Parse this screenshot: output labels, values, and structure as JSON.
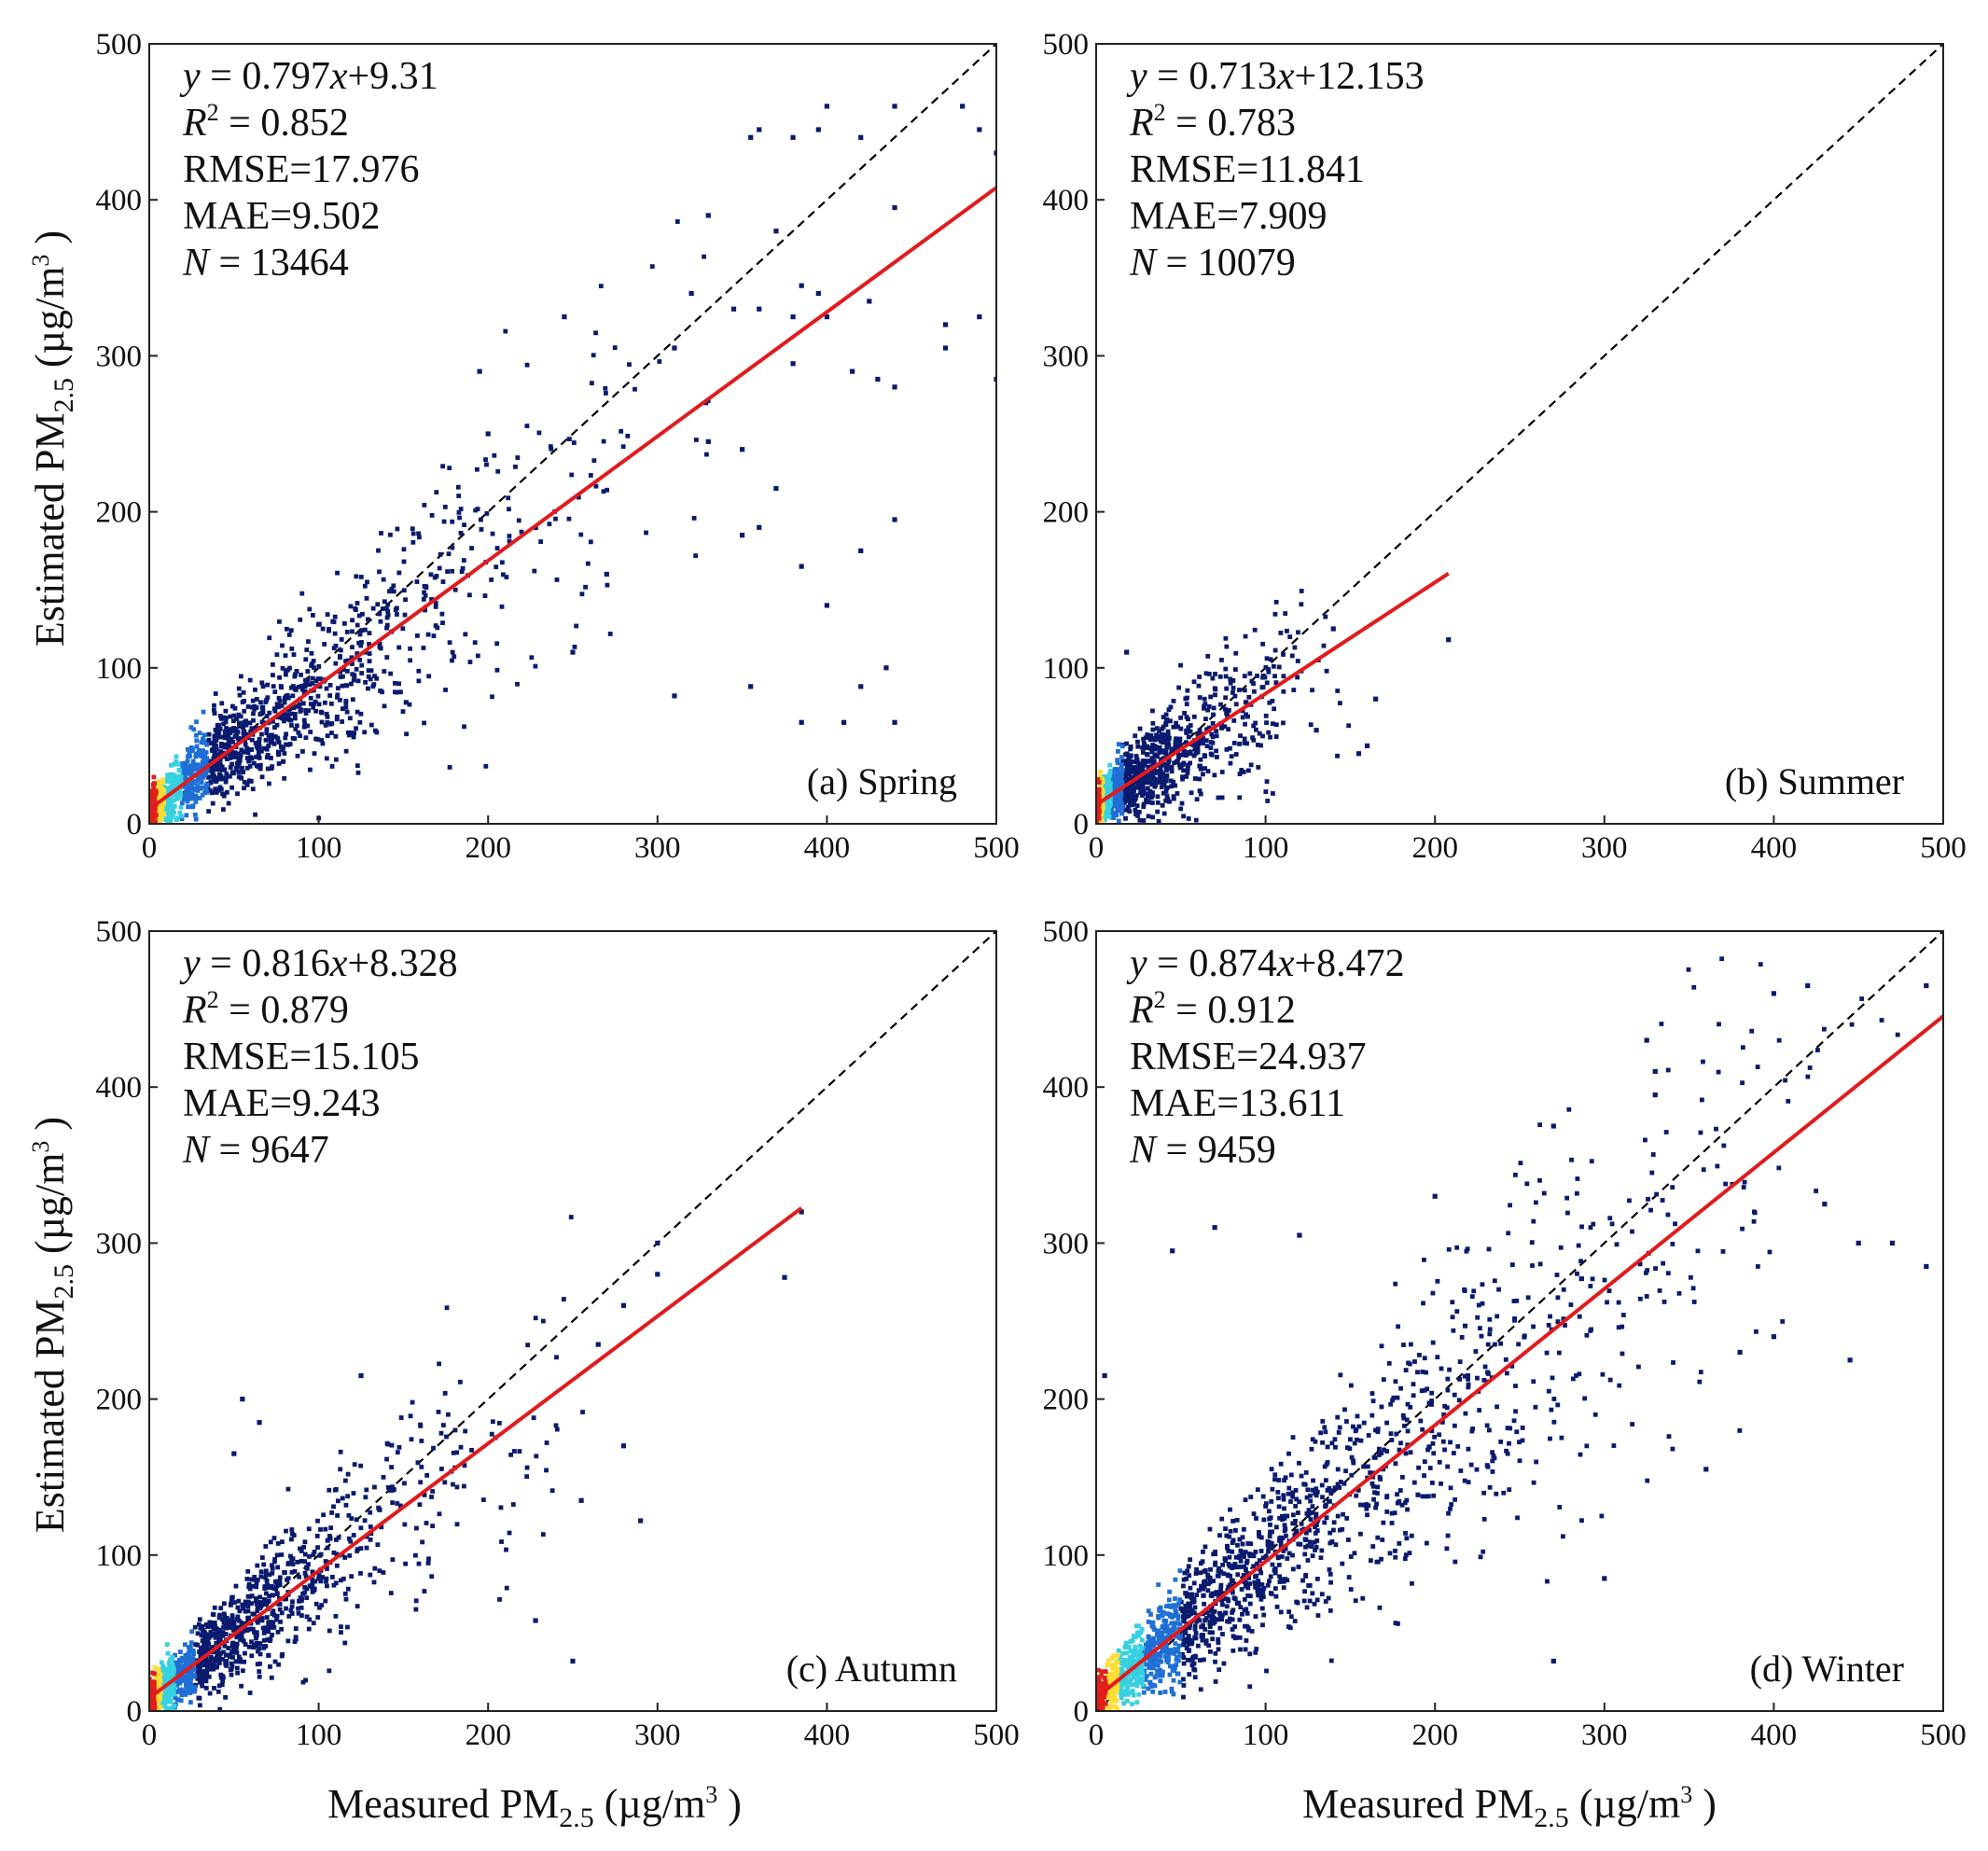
{
  "figure": {
    "x_axis_title": {
      "main": "Measured PM",
      "sub": "2.5",
      "unit_open": " (µg/m",
      "sup": "3",
      "unit_close": " )"
    },
    "y_axis_title": {
      "main": "Estimated PM",
      "sub": "2.5",
      "unit_open": " (µg/m",
      "sup": "3",
      "unit_close": " )"
    }
  },
  "colors": {
    "fit_line": "#e31a1c",
    "identity_line": "#000000",
    "point_low_density": "#0a1a6e",
    "point_mid_density": "#1f6fd6",
    "point_high_density": "#37d0e0",
    "point_peak_density": "#ffdd33",
    "point_max_density": "#e0201a"
  },
  "chart_data": [
    {
      "type": "scatter",
      "id": "spring",
      "panel_label": "(a) Spring",
      "xlim": [
        0,
        500
      ],
      "ylim": [
        0,
        500
      ],
      "xticks": [
        "0",
        "100",
        "200",
        "300",
        "400",
        "500"
      ],
      "yticks": [
        "0",
        "100",
        "200",
        "300",
        "400",
        "500"
      ],
      "fit": {
        "slope": 0.797,
        "intercept": 9.31,
        "x_range": [
          0,
          500
        ]
      },
      "identity_line": true,
      "stats": {
        "eq_lhs": "y",
        "eq_rhs": " = 0.797",
        "eq_x": "x",
        "eq_tail": "+9.31",
        "r2_label": "R",
        "r2_sup": "2",
        "r2_value": " = 0.852",
        "rmse": "RMSE=17.976",
        "mae": "MAE=9.502",
        "n_label": "N",
        "n_value": " = 13464"
      },
      "cloud": {
        "n_points": 1300,
        "x_max": 330,
        "scatter": 0.2
      },
      "outliers": [
        [
          355,
          440
        ],
        [
          360,
          445
        ],
        [
          380,
          440
        ],
        [
          395,
          445
        ],
        [
          400,
          460
        ],
        [
          420,
          440
        ],
        [
          440,
          460
        ],
        [
          480,
          460
        ],
        [
          490,
          445
        ],
        [
          500,
          430
        ],
        [
          330,
          390
        ],
        [
          370,
          380
        ],
        [
          440,
          395
        ],
        [
          385,
          345
        ],
        [
          395,
          340
        ],
        [
          320,
          340
        ],
        [
          345,
          330
        ],
        [
          360,
          330
        ],
        [
          380,
          325
        ],
        [
          400,
          325
        ],
        [
          425,
          335
        ],
        [
          470,
          320
        ],
        [
          490,
          325
        ],
        [
          500,
          285
        ],
        [
          470,
          305
        ],
        [
          430,
          285
        ],
        [
          440,
          280
        ],
        [
          415,
          290
        ],
        [
          380,
          295
        ],
        [
          310,
          305
        ],
        [
          330,
          245
        ],
        [
          350,
          240
        ],
        [
          370,
          215
        ],
        [
          360,
          190
        ],
        [
          350,
          185
        ],
        [
          385,
          165
        ],
        [
          400,
          140
        ],
        [
          420,
          175
        ],
        [
          440,
          195
        ],
        [
          310,
          82
        ],
        [
          355,
          88
        ],
        [
          385,
          65
        ],
        [
          410,
          65
        ],
        [
          420,
          88
        ],
        [
          435,
          100
        ],
        [
          440,
          65
        ],
        [
          250,
          110
        ],
        [
          270,
          160
        ],
        [
          245,
          325
        ],
        [
          195,
          290
        ],
        [
          200,
          250
        ]
      ]
    },
    {
      "type": "scatter",
      "id": "summer",
      "panel_label": "(b) Summer",
      "xlim": [
        0,
        500
      ],
      "ylim": [
        0,
        500
      ],
      "xticks": [
        "0",
        "100",
        "200",
        "300",
        "400",
        "500"
      ],
      "yticks": [
        "0",
        "100",
        "200",
        "300",
        "400",
        "500"
      ],
      "fit": {
        "slope": 0.713,
        "intercept": 12.153,
        "x_range": [
          0,
          208
        ]
      },
      "identity_line": true,
      "stats": {
        "eq_lhs": "y",
        "eq_rhs": " = 0.713",
        "eq_x": "x",
        "eq_tail": "+12.153",
        "r2_label": "R",
        "r2_sup": "2",
        "r2_value": " = 0.783",
        "rmse": "RMSE=11.841",
        "mae": "MAE=7.909",
        "n_label": "N",
        "n_value": " = 10079"
      },
      "cloud": {
        "n_points": 1100,
        "x_max": 150,
        "scatter": 0.25
      },
      "outliers": [
        [
          208,
          118
        ],
        [
          160,
          50
        ],
        [
          155,
          45
        ],
        [
          165,
          80
        ],
        [
          140,
          125
        ],
        [
          18,
          110
        ],
        [
          130,
          60
        ]
      ]
    },
    {
      "type": "scatter",
      "id": "autumn",
      "panel_label": "(c) Autumn",
      "xlim": [
        0,
        500
      ],
      "ylim": [
        0,
        500
      ],
      "xticks": [
        "0",
        "100",
        "200",
        "300",
        "400",
        "500"
      ],
      "yticks": [
        "0",
        "100",
        "200",
        "300",
        "400",
        "500"
      ],
      "fit": {
        "slope": 0.816,
        "intercept": 8.328,
        "x_range": [
          0,
          385
        ]
      },
      "identity_line": true,
      "stats": {
        "eq_lhs": "y",
        "eq_rhs": " = 0.816",
        "eq_x": "x",
        "eq_tail": "+8.328",
        "r2_label": "R",
        "r2_sup": "2",
        "r2_value": " = 0.879",
        "rmse": "RMSE=15.105",
        "mae": "MAE=9.243",
        "n_label": "N",
        "n_value": " = 9647"
      },
      "cloud": {
        "n_points": 1200,
        "x_max": 260,
        "scatter": 0.18
      },
      "outliers": [
        [
          385,
          320
        ],
        [
          375,
          278
        ],
        [
          300,
          300
        ],
        [
          300,
          280
        ],
        [
          280,
          260
        ],
        [
          280,
          170
        ],
        [
          290,
          122
        ],
        [
          250,
          32
        ],
        [
          228,
          58
        ],
        [
          255,
          135
        ],
        [
          265,
          235
        ],
        [
          55,
          200
        ],
        [
          65,
          185
        ],
        [
          50,
          165
        ],
        [
          125,
          215
        ]
      ]
    },
    {
      "type": "scatter",
      "id": "winter",
      "panel_label": "(d) Winter",
      "xlim": [
        0,
        500
      ],
      "ylim": [
        0,
        500
      ],
      "xticks": [
        "0",
        "100",
        "200",
        "300",
        "400",
        "500"
      ],
      "yticks": [
        "0",
        "100",
        "200",
        "300",
        "400",
        "500"
      ],
      "fit": {
        "slope": 0.874,
        "intercept": 8.472,
        "x_range": [
          0,
          500
        ]
      },
      "identity_line": true,
      "stats": {
        "eq_lhs": "y",
        "eq_rhs": " = 0.874",
        "eq_x": "x",
        "eq_tail": "+8.472",
        "r2_label": "R",
        "r2_sup": "2",
        "r2_value": " = 0.912",
        "rmse": "RMSE=24.937",
        "mae": "MAE=13.611",
        "n_label": "N",
        "n_value": " = 9459"
      },
      "cloud": {
        "n_points": 1700,
        "x_max": 480,
        "scatter": 0.2
      },
      "outliers": [
        [
          400,
          460
        ],
        [
          420,
          465
        ],
        [
          490,
          465
        ],
        [
          325,
          430
        ],
        [
          330,
          410
        ],
        [
          330,
          395
        ],
        [
          270,
          375
        ],
        [
          45,
          295
        ],
        [
          70,
          310
        ],
        [
          120,
          305
        ],
        [
          200,
          330
        ],
        [
          430,
          325
        ],
        [
          450,
          300
        ],
        [
          470,
          300
        ],
        [
          490,
          285
        ],
        [
          380,
          230
        ],
        [
          400,
          240
        ],
        [
          360,
          155
        ],
        [
          300,
          85
        ],
        [
          270,
          32
        ],
        [
          5,
          215
        ],
        [
          445,
          225
        ]
      ]
    }
  ]
}
